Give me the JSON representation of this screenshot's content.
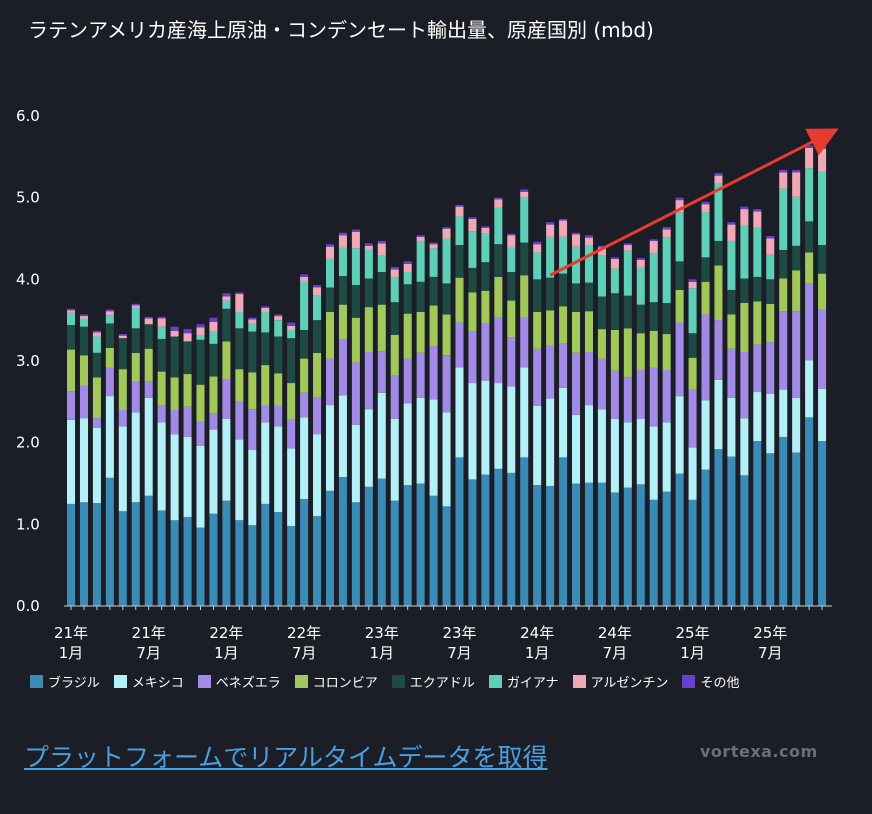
{
  "header": {
    "title": "ラテンアメリカ産海上原油・コンデンセート輸出量、原産国別 (mbd)"
  },
  "footer": {
    "cta_text": "プラットフォームでリアルタイムデータを取得",
    "brand": "vortexa.com"
  },
  "chart_data": {
    "type": "bar",
    "stacked": true,
    "title": "ラテンアメリカ産海上原油・コンデンセート輸出量、原産国別 (mbd)",
    "ylim": [
      0,
      6.0
    ],
    "yticks": [
      "0.0",
      "1.0",
      "2.0",
      "3.0",
      "4.0",
      "5.0",
      "6.0"
    ],
    "xtick_labels": [
      {
        "index": 0,
        "line1": "21年",
        "line2": "1月"
      },
      {
        "index": 6,
        "line1": "21年",
        "line2": "7月"
      },
      {
        "index": 12,
        "line1": "22年",
        "line2": "1月"
      },
      {
        "index": 18,
        "line1": "22年",
        "line2": "7月"
      },
      {
        "index": 24,
        "line1": "23年",
        "line2": "1月"
      },
      {
        "index": 30,
        "line1": "23年",
        "line2": "7月"
      },
      {
        "index": 36,
        "line1": "24年",
        "line2": "1月"
      },
      {
        "index": 42,
        "line1": "24年",
        "line2": "7月"
      },
      {
        "index": 48,
        "line1": "25年",
        "line2": "1月"
      },
      {
        "index": 54,
        "line1": "25年",
        "line2": "7月"
      }
    ],
    "legend_position": "bottom",
    "series": [
      {
        "name": "ブラジル",
        "color": "#3a8bb6",
        "values": [
          1.25,
          1.27,
          1.26,
          1.57,
          1.16,
          1.27,
          1.35,
          1.17,
          1.05,
          1.09,
          0.96,
          1.13,
          1.29,
          1.05,
          0.99,
          1.25,
          1.15,
          0.98,
          1.31,
          1.1,
          1.41,
          1.58,
          1.27,
          1.46,
          1.56,
          1.29,
          1.48,
          1.5,
          1.35,
          1.22,
          1.82,
          1.55,
          1.61,
          1.68,
          1.63,
          1.82,
          1.48,
          1.47,
          1.82,
          1.5,
          1.51,
          1.51,
          1.39,
          1.45,
          1.49,
          1.3,
          1.4,
          1.62,
          1.3,
          1.67,
          1.92,
          1.83,
          1.6,
          2.02,
          1.87,
          2.07,
          1.88,
          2.31,
          2.02
        ]
      },
      {
        "name": "メキシコ",
        "color": "#b3f0f8",
        "values": [
          1.03,
          1.03,
          0.92,
          1.0,
          1.04,
          1.1,
          1.2,
          1.08,
          1.05,
          0.98,
          1.0,
          1.03,
          1.0,
          0.99,
          0.92,
          1.0,
          1.05,
          0.95,
          1.0,
          1.0,
          1.05,
          1.0,
          0.95,
          0.95,
          1.05,
          1.0,
          1.0,
          1.05,
          1.18,
          1.15,
          1.1,
          1.18,
          1.15,
          1.05,
          1.06,
          1.1,
          0.97,
          1.07,
          0.85,
          0.84,
          0.95,
          0.9,
          0.9,
          0.8,
          0.8,
          0.9,
          0.85,
          0.95,
          0.64,
          0.85,
          0.85,
          0.72,
          0.7,
          0.6,
          0.73,
          0.58,
          0.67,
          0.7,
          0.64
        ]
      },
      {
        "name": "ベネズエラ",
        "color": "#a18be6",
        "values": [
          0.35,
          0.4,
          0.12,
          0.35,
          0.2,
          0.38,
          0.2,
          0.21,
          0.3,
          0.37,
          0.3,
          0.2,
          0.49,
          0.46,
          0.5,
          0.2,
          0.25,
          0.35,
          0.3,
          0.45,
          0.57,
          0.69,
          0.76,
          0.7,
          0.51,
          0.53,
          0.55,
          0.55,
          0.65,
          0.7,
          0.55,
          0.63,
          0.7,
          0.8,
          0.6,
          0.61,
          0.7,
          0.65,
          0.55,
          0.76,
          0.65,
          0.62,
          0.59,
          0.55,
          0.6,
          0.72,
          0.64,
          0.9,
          0.71,
          1.05,
          0.73,
          0.6,
          0.81,
          0.58,
          0.63,
          0.96,
          1.06,
          0.94,
          0.97
        ]
      },
      {
        "name": "コロンビア",
        "color": "#a3c85a",
        "values": [
          0.51,
          0.37,
          0.5,
          0.24,
          0.5,
          0.35,
          0.4,
          0.41,
          0.4,
          0.4,
          0.45,
          0.45,
          0.46,
          0.4,
          0.45,
          0.5,
          0.4,
          0.45,
          0.42,
          0.55,
          0.57,
          0.42,
          0.55,
          0.55,
          0.57,
          0.5,
          0.55,
          0.5,
          0.5,
          0.5,
          0.55,
          0.48,
          0.4,
          0.5,
          0.45,
          0.52,
          0.45,
          0.43,
          0.45,
          0.5,
          0.5,
          0.36,
          0.5,
          0.6,
          0.45,
          0.45,
          0.44,
          0.4,
          0.39,
          0.4,
          0.67,
          0.42,
          0.6,
          0.53,
          0.47,
          0.4,
          0.5,
          0.38,
          0.44
        ]
      },
      {
        "name": "エクアドル",
        "color": "#1f4a44",
        "values": [
          0.3,
          0.35,
          0.3,
          0.3,
          0.38,
          0.3,
          0.3,
          0.4,
          0.5,
          0.4,
          0.55,
          0.4,
          0.4,
          0.5,
          0.5,
          0.4,
          0.45,
          0.55,
          0.35,
          0.4,
          0.3,
          0.35,
          0.4,
          0.35,
          0.4,
          0.4,
          0.36,
          0.37,
          0.35,
          0.38,
          0.4,
          0.3,
          0.35,
          0.4,
          0.35,
          0.4,
          0.4,
          0.4,
          0.4,
          0.35,
          0.35,
          0.4,
          0.45,
          0.4,
          0.35,
          0.35,
          0.38,
          0.35,
          0.3,
          0.3,
          0.3,
          0.3,
          0.3,
          0.3,
          0.3,
          0.35,
          0.3,
          0.38,
          0.35
        ]
      },
      {
        "name": "ガイアナ",
        "color": "#5ecfb8",
        "values": [
          0.15,
          0.1,
          0.2,
          0.1,
          0.0,
          0.25,
          0.0,
          0.15,
          0.0,
          0.0,
          0.05,
          0.15,
          0.1,
          0.2,
          0.1,
          0.25,
          0.2,
          0.1,
          0.6,
          0.3,
          0.35,
          0.35,
          0.45,
          0.35,
          0.2,
          0.3,
          0.15,
          0.5,
          0.35,
          0.55,
          0.35,
          0.45,
          0.35,
          0.45,
          0.3,
          0.55,
          0.33,
          0.5,
          0.45,
          0.45,
          0.45,
          0.5,
          0.3,
          0.55,
          0.45,
          0.6,
          0.8,
          0.6,
          0.55,
          0.55,
          0.7,
          0.6,
          0.65,
          0.6,
          0.3,
          0.75,
          0.6,
          0.65,
          0.9
        ]
      },
      {
        "name": "アルゼンチン",
        "color": "#f0a8b6",
        "values": [
          0.03,
          0.03,
          0.05,
          0.05,
          0.03,
          0.03,
          0.07,
          0.1,
          0.07,
          0.1,
          0.1,
          0.12,
          0.05,
          0.22,
          0.05,
          0.05,
          0.05,
          0.05,
          0.05,
          0.1,
          0.15,
          0.15,
          0.2,
          0.05,
          0.15,
          0.1,
          0.1,
          0.05,
          0.05,
          0.12,
          0.12,
          0.15,
          0.07,
          0.1,
          0.15,
          0.07,
          0.1,
          0.15,
          0.2,
          0.15,
          0.1,
          0.1,
          0.12,
          0.07,
          0.1,
          0.15,
          0.1,
          0.15,
          0.08,
          0.1,
          0.1,
          0.2,
          0.2,
          0.2,
          0.2,
          0.2,
          0.3,
          0.25,
          0.28
        ]
      },
      {
        "name": "その他",
        "color": "#6a3fd0",
        "values": [
          0.02,
          0.02,
          0.02,
          0.02,
          0.02,
          0.02,
          0.02,
          0.02,
          0.05,
          0.05,
          0.04,
          0.05,
          0.04,
          0.02,
          0.02,
          0.02,
          0.02,
          0.04,
          0.03,
          0.03,
          0.03,
          0.03,
          0.03,
          0.03,
          0.03,
          0.03,
          0.03,
          0.02,
          0.02,
          0.02,
          0.02,
          0.02,
          0.02,
          0.02,
          0.02,
          0.03,
          0.03,
          0.03,
          0.02,
          0.02,
          0.03,
          0.02,
          0.02,
          0.02,
          0.02,
          0.02,
          0.03,
          0.03,
          0.03,
          0.03,
          0.03,
          0.03,
          0.03,
          0.03,
          0.03,
          0.03,
          0.03,
          0.03,
          0.03
        ]
      }
    ],
    "annotation": {
      "type": "trend-arrow",
      "color": "#e63b2e",
      "from": {
        "index": 37,
        "value": 4.05
      },
      "to": {
        "index": 62,
        "value": 5.78
      }
    }
  }
}
